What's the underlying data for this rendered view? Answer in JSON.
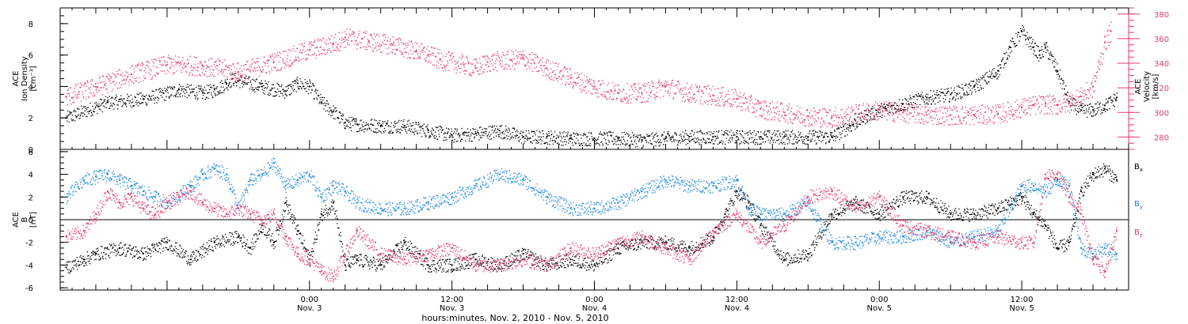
{
  "colors": {
    "density": "#000000",
    "velocity": "#e83a6a",
    "bx": "#000000",
    "by": "#1e88e5",
    "bz": "#e83a6a"
  },
  "chart_data": [
    {
      "type": "scatter",
      "panel": "top",
      "ylabel_lines": [
        "ACE",
        "Ion Density",
        "[cm⁻³]"
      ],
      "y2label_lines": [
        "ACE",
        "Velocity",
        "[km/s]"
      ],
      "ylim": [
        0,
        9
      ],
      "y_ticks": [
        0,
        2,
        4,
        6,
        8
      ],
      "y2lim": [
        270,
        385
      ],
      "y2_ticks": [
        280,
        300,
        320,
        340,
        360,
        380
      ],
      "xlim_hours": [
        -21,
        69
      ],
      "series": [
        {
          "axis": "left",
          "x": [
            -20.5,
            -17,
            -14,
            -11,
            -9,
            -8,
            -7,
            -6.5,
            -4,
            -2,
            -1,
            0,
            1,
            2,
            3,
            4,
            6,
            8,
            10,
            12,
            14,
            16,
            18,
            20,
            22,
            24,
            26,
            28,
            30,
            32,
            34,
            36,
            38,
            40,
            42,
            44,
            45.5,
            47,
            48.5,
            50,
            52,
            54,
            56,
            58,
            59,
            60,
            61,
            61.5,
            62,
            63,
            64,
            65,
            66,
            67,
            68
          ],
          "y": [
            2.0,
            3.0,
            3.2,
            3.8,
            3.6,
            3.8,
            4.2,
            4.5,
            4.0,
            3.7,
            4.2,
            4.0,
            3.0,
            2.4,
            1.7,
            1.6,
            1.5,
            1.5,
            1.2,
            0.9,
            1.0,
            1.2,
            0.8,
            0.8,
            0.7,
            0.7,
            0.7,
            0.6,
            0.7,
            0.8,
            0.8,
            0.8,
            0.8,
            0.8,
            0.8,
            0.8,
            1.5,
            2.2,
            2.6,
            2.9,
            3.3,
            3.5,
            4.0,
            5.0,
            6.5,
            7.5,
            6.5,
            6.0,
            6.5,
            5.0,
            3.0,
            2.5,
            2.5,
            2.8,
            3.3
          ]
        },
        {
          "axis": "right",
          "x": [
            -20.5,
            -18,
            -15,
            -12,
            -9,
            -6,
            -3,
            0,
            2,
            3,
            5,
            7,
            9,
            10,
            11,
            13,
            14,
            15,
            18,
            20,
            22,
            24,
            26,
            28,
            30,
            32,
            34,
            36,
            38,
            40,
            42,
            44,
            46,
            48,
            50,
            52,
            54,
            56,
            58,
            60,
            61,
            62,
            63,
            64,
            65,
            66,
            67,
            67.5
          ],
          "y": [
            313,
            321,
            331,
            339,
            338,
            333,
            341,
            351,
            356,
            361,
            358,
            355,
            350,
            347,
            343,
            339,
            336,
            341,
            344,
            336,
            328,
            321,
            316,
            316,
            321,
            316,
            314,
            311,
            303,
            300,
            297,
            296,
            299,
            302,
            300,
            298,
            298,
            298,
            299,
            304,
            306,
            307,
            306,
            308,
            313,
            321,
            357,
            366
          ]
        }
      ]
    },
    {
      "type": "scatter",
      "panel": "bottom",
      "ylabel_lines": [
        "ACE",
        "B",
        "[nT]"
      ],
      "ylim": [
        -6.2,
        6.2
      ],
      "y_ticks": [
        -6,
        -4,
        -2,
        0,
        2,
        4,
        6
      ],
      "xlim_hours": [
        -21,
        69
      ],
      "x_ticks": [
        {
          "h": 0,
          "time": "0:00",
          "date": "Nov. 3"
        },
        {
          "h": 12,
          "time": "12:00",
          "date": "Nov. 3"
        },
        {
          "h": 24,
          "time": "0:00",
          "date": "Nov. 4"
        },
        {
          "h": 36,
          "time": "12:00",
          "date": "Nov. 4"
        },
        {
          "h": 48,
          "time": "0:00",
          "date": "Nov. 5"
        },
        {
          "h": 60,
          "time": "12:00",
          "date": "Nov. 5"
        }
      ],
      "xlabel": "hours:minutes, Nov.  2, 2010 - Nov.  5, 2010",
      "legend": [
        {
          "label": "B",
          "sub": "x",
          "color_key": "bx"
        },
        {
          "label": "B",
          "sub": "y",
          "color_key": "by"
        },
        {
          "label": "B",
          "sub": "z",
          "color_key": "bz"
        }
      ],
      "series": [
        {
          "key": "bx",
          "x": [
            -20.5,
            -19,
            -18,
            -16,
            -14,
            -12,
            -10,
            -8,
            -6,
            -5,
            -4,
            -3,
            -2,
            -1,
            0,
            1,
            2,
            3,
            4,
            6,
            8,
            10,
            12,
            14,
            16,
            18,
            20,
            22,
            24,
            26,
            28,
            30,
            32,
            34,
            35,
            36,
            37,
            38,
            40,
            42,
            44,
            46,
            48,
            50,
            52,
            54,
            56,
            58,
            60,
            61,
            62,
            63,
            64,
            65,
            66,
            67,
            68
          ],
          "y": [
            -4.2,
            -3.5,
            -3.0,
            -2.5,
            -3.0,
            -2.0,
            -3.5,
            -2.0,
            -1.5,
            -2.5,
            -0.5,
            -2.0,
            1.5,
            -1.0,
            -3.5,
            0.5,
            1.5,
            -4.0,
            -3.5,
            -4.0,
            -2.0,
            -4.0,
            -4.0,
            -3.5,
            -4.0,
            -3.0,
            -4.0,
            -3.5,
            -4.0,
            -2.5,
            -2.0,
            -2.0,
            -2.5,
            -1.5,
            0.5,
            2.5,
            1.5,
            -0.5,
            -3.5,
            -3.0,
            0.5,
            1.5,
            0.5,
            2.0,
            2.0,
            0.5,
            0.5,
            1.0,
            2.0,
            0.5,
            -0.5,
            -2.5,
            -2.0,
            2.5,
            4.0,
            4.5,
            3.5
          ]
        },
        {
          "key": "by",
          "x": [
            -20.5,
            -19,
            -18,
            -17,
            -16,
            -15,
            -14,
            -13,
            -12,
            -10,
            -9,
            -8,
            -7,
            -6,
            -5,
            -4,
            -3,
            -2,
            -1,
            0,
            1,
            2,
            3,
            4,
            6,
            8,
            10,
            12,
            14,
            16,
            18,
            20,
            22,
            24,
            26,
            28,
            30,
            32,
            34,
            36,
            37,
            38,
            40,
            42,
            44,
            46,
            48,
            50,
            52,
            54,
            56,
            58,
            60,
            61,
            62,
            63,
            64,
            65,
            66,
            67,
            68
          ],
          "y": [
            2.0,
            3.5,
            3.8,
            4.0,
            3.5,
            3.0,
            2.5,
            2.0,
            1.5,
            3.0,
            4.0,
            4.5,
            4.0,
            1.0,
            3.5,
            4.0,
            5.0,
            3.0,
            3.5,
            4.0,
            2.0,
            3.0,
            2.5,
            1.5,
            1.0,
            1.0,
            1.5,
            2.0,
            3.0,
            4.0,
            3.5,
            2.0,
            1.0,
            1.0,
            1.5,
            2.5,
            3.5,
            3.0,
            3.0,
            3.5,
            1.0,
            0.5,
            0.5,
            1.5,
            -2.0,
            -2.0,
            -1.5,
            -1.5,
            -1.0,
            -2.0,
            -1.5,
            -1.0,
            3.0,
            3.0,
            2.5,
            3.5,
            3.0,
            -2.5,
            -3.0,
            -2.5,
            -3.0
          ]
        },
        {
          "key": "bz",
          "x": [
            -20.5,
            -19,
            -18,
            -17,
            -16,
            -15,
            -14,
            -13,
            -12,
            -11,
            -10,
            -9,
            -8,
            -7,
            -6,
            -5,
            -4,
            -3,
            -2,
            -1,
            0,
            1,
            2,
            4,
            6,
            8,
            10,
            12,
            14,
            16,
            18,
            20,
            22,
            24,
            26,
            28,
            30,
            32,
            34,
            36,
            38,
            40,
            42,
            44,
            46,
            48,
            50,
            52,
            54,
            56,
            58,
            60,
            61,
            62,
            63,
            64,
            65,
            66,
            67,
            68
          ],
          "y": [
            -1.5,
            -1.0,
            0.5,
            2.5,
            1.5,
            2.0,
            1.0,
            0.5,
            1.5,
            2.0,
            2.5,
            1.5,
            1.0,
            0.5,
            1.0,
            0.5,
            0.0,
            0.5,
            -1.5,
            -3.0,
            -3.5,
            -4.5,
            -5.0,
            -1.0,
            -3.0,
            -3.5,
            -3.0,
            -2.5,
            -4.0,
            -4.0,
            -3.5,
            -4.0,
            -2.5,
            -3.0,
            -2.0,
            -1.5,
            -2.5,
            -3.5,
            -1.0,
            0.5,
            -2.0,
            -0.5,
            2.0,
            2.5,
            1.0,
            2.0,
            -0.5,
            -1.0,
            -1.5,
            -2.0,
            -1.5,
            -2.0,
            -2.0,
            4.0,
            4.0,
            2.0,
            0.5,
            -3.5,
            -4.5,
            -1.0
          ]
        }
      ]
    }
  ]
}
